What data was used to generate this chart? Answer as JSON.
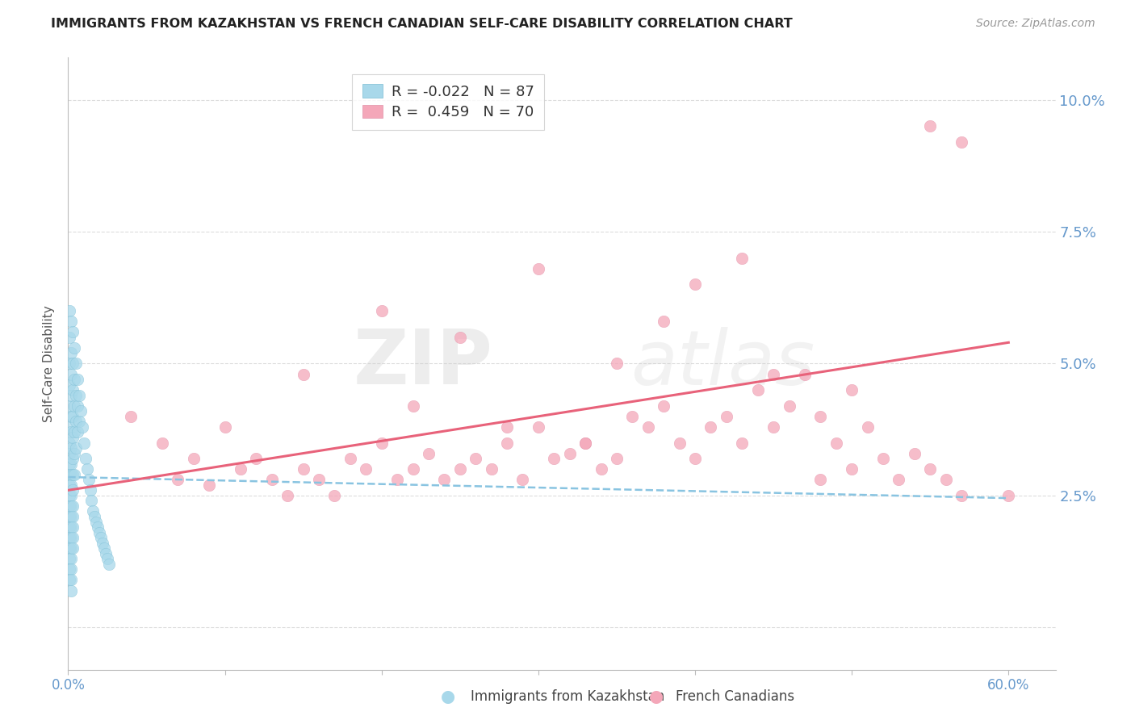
{
  "title": "IMMIGRANTS FROM KAZAKHSTAN VS FRENCH CANADIAN SELF-CARE DISABILITY CORRELATION CHART",
  "source": "Source: ZipAtlas.com",
  "ylabel": "Self-Care Disability",
  "xlim": [
    0.0,
    0.63
  ],
  "ylim": [
    -0.008,
    0.108
  ],
  "yticks": [
    0.0,
    0.025,
    0.05,
    0.075,
    0.1
  ],
  "ytick_labels": [
    "",
    "2.5%",
    "5.0%",
    "7.5%",
    "10.0%"
  ],
  "xticks": [
    0.0,
    0.1,
    0.2,
    0.3,
    0.4,
    0.5,
    0.6
  ],
  "xtick_labels": [
    "0.0%",
    "",
    "",
    "",
    "",
    "",
    "60.0%"
  ],
  "legend_r1": "R = -0.022",
  "legend_n1": "N = 87",
  "legend_r2": "R =  0.459",
  "legend_n2": "N = 70",
  "color_blue": "#A8D8EA",
  "color_blue_dark": "#7BBDD4",
  "color_blue_line": "#89C4E1",
  "color_pink": "#F4A7B9",
  "color_pink_line": "#E8627A",
  "color_title": "#222222",
  "color_source": "#999999",
  "color_ytick": "#6699CC",
  "color_xtick": "#6699CC",
  "color_grid": "#DDDDDD",
  "watermark_zip": "ZIP",
  "watermark_atlas": "atlas",
  "blue_points_x": [
    0.001,
    0.001,
    0.001,
    0.001,
    0.001,
    0.001,
    0.001,
    0.001,
    0.001,
    0.001,
    0.001,
    0.001,
    0.001,
    0.001,
    0.001,
    0.001,
    0.001,
    0.001,
    0.001,
    0.001,
    0.002,
    0.002,
    0.002,
    0.002,
    0.002,
    0.002,
    0.002,
    0.002,
    0.002,
    0.002,
    0.002,
    0.002,
    0.002,
    0.002,
    0.002,
    0.002,
    0.002,
    0.002,
    0.002,
    0.002,
    0.003,
    0.003,
    0.003,
    0.003,
    0.003,
    0.003,
    0.003,
    0.003,
    0.003,
    0.003,
    0.003,
    0.003,
    0.003,
    0.004,
    0.004,
    0.004,
    0.004,
    0.004,
    0.004,
    0.005,
    0.005,
    0.005,
    0.005,
    0.006,
    0.006,
    0.006,
    0.007,
    0.007,
    0.008,
    0.009,
    0.01,
    0.011,
    0.012,
    0.013,
    0.014,
    0.015,
    0.016,
    0.017,
    0.018,
    0.019,
    0.02,
    0.021,
    0.022,
    0.023,
    0.024,
    0.025,
    0.026
  ],
  "blue_points_y": [
    0.06,
    0.055,
    0.05,
    0.046,
    0.042,
    0.038,
    0.035,
    0.033,
    0.031,
    0.029,
    0.027,
    0.025,
    0.023,
    0.021,
    0.019,
    0.017,
    0.015,
    0.013,
    0.011,
    0.009,
    0.058,
    0.052,
    0.048,
    0.044,
    0.04,
    0.037,
    0.034,
    0.031,
    0.029,
    0.027,
    0.025,
    0.023,
    0.021,
    0.019,
    0.017,
    0.015,
    0.013,
    0.011,
    0.009,
    0.007,
    0.056,
    0.05,
    0.045,
    0.04,
    0.036,
    0.032,
    0.029,
    0.026,
    0.023,
    0.021,
    0.019,
    0.017,
    0.015,
    0.053,
    0.047,
    0.042,
    0.037,
    0.033,
    0.029,
    0.05,
    0.044,
    0.039,
    0.034,
    0.047,
    0.042,
    0.037,
    0.044,
    0.039,
    0.041,
    0.038,
    0.035,
    0.032,
    0.03,
    0.028,
    0.026,
    0.024,
    0.022,
    0.021,
    0.02,
    0.019,
    0.018,
    0.017,
    0.016,
    0.015,
    0.014,
    0.013,
    0.012
  ],
  "pink_points_x": [
    0.04,
    0.06,
    0.07,
    0.08,
    0.09,
    0.1,
    0.11,
    0.12,
    0.13,
    0.14,
    0.15,
    0.16,
    0.17,
    0.18,
    0.19,
    0.2,
    0.21,
    0.22,
    0.23,
    0.24,
    0.25,
    0.26,
    0.27,
    0.28,
    0.29,
    0.3,
    0.31,
    0.32,
    0.33,
    0.34,
    0.35,
    0.36,
    0.37,
    0.38,
    0.39,
    0.4,
    0.41,
    0.42,
    0.43,
    0.44,
    0.45,
    0.46,
    0.47,
    0.48,
    0.49,
    0.5,
    0.51,
    0.52,
    0.53,
    0.54,
    0.55,
    0.56,
    0.57,
    0.2,
    0.25,
    0.3,
    0.35,
    0.4,
    0.45,
    0.5,
    0.15,
    0.22,
    0.28,
    0.33,
    0.38,
    0.43,
    0.48,
    0.55,
    0.57,
    0.6
  ],
  "pink_points_y": [
    0.04,
    0.035,
    0.028,
    0.032,
    0.027,
    0.038,
    0.03,
    0.032,
    0.028,
    0.025,
    0.03,
    0.028,
    0.025,
    0.032,
    0.03,
    0.035,
    0.028,
    0.03,
    0.033,
    0.028,
    0.03,
    0.032,
    0.03,
    0.035,
    0.028,
    0.038,
    0.032,
    0.033,
    0.035,
    0.03,
    0.032,
    0.04,
    0.038,
    0.042,
    0.035,
    0.032,
    0.038,
    0.04,
    0.035,
    0.045,
    0.038,
    0.042,
    0.048,
    0.04,
    0.035,
    0.03,
    0.038,
    0.032,
    0.028,
    0.033,
    0.03,
    0.028,
    0.025,
    0.06,
    0.055,
    0.068,
    0.05,
    0.065,
    0.048,
    0.045,
    0.048,
    0.042,
    0.038,
    0.035,
    0.058,
    0.07,
    0.028,
    0.095,
    0.092,
    0.025
  ],
  "blue_line_x": [
    0.0,
    0.6
  ],
  "blue_line_y": [
    0.0285,
    0.0245
  ],
  "pink_line_x": [
    0.0,
    0.6
  ],
  "pink_line_y": [
    0.026,
    0.054
  ]
}
